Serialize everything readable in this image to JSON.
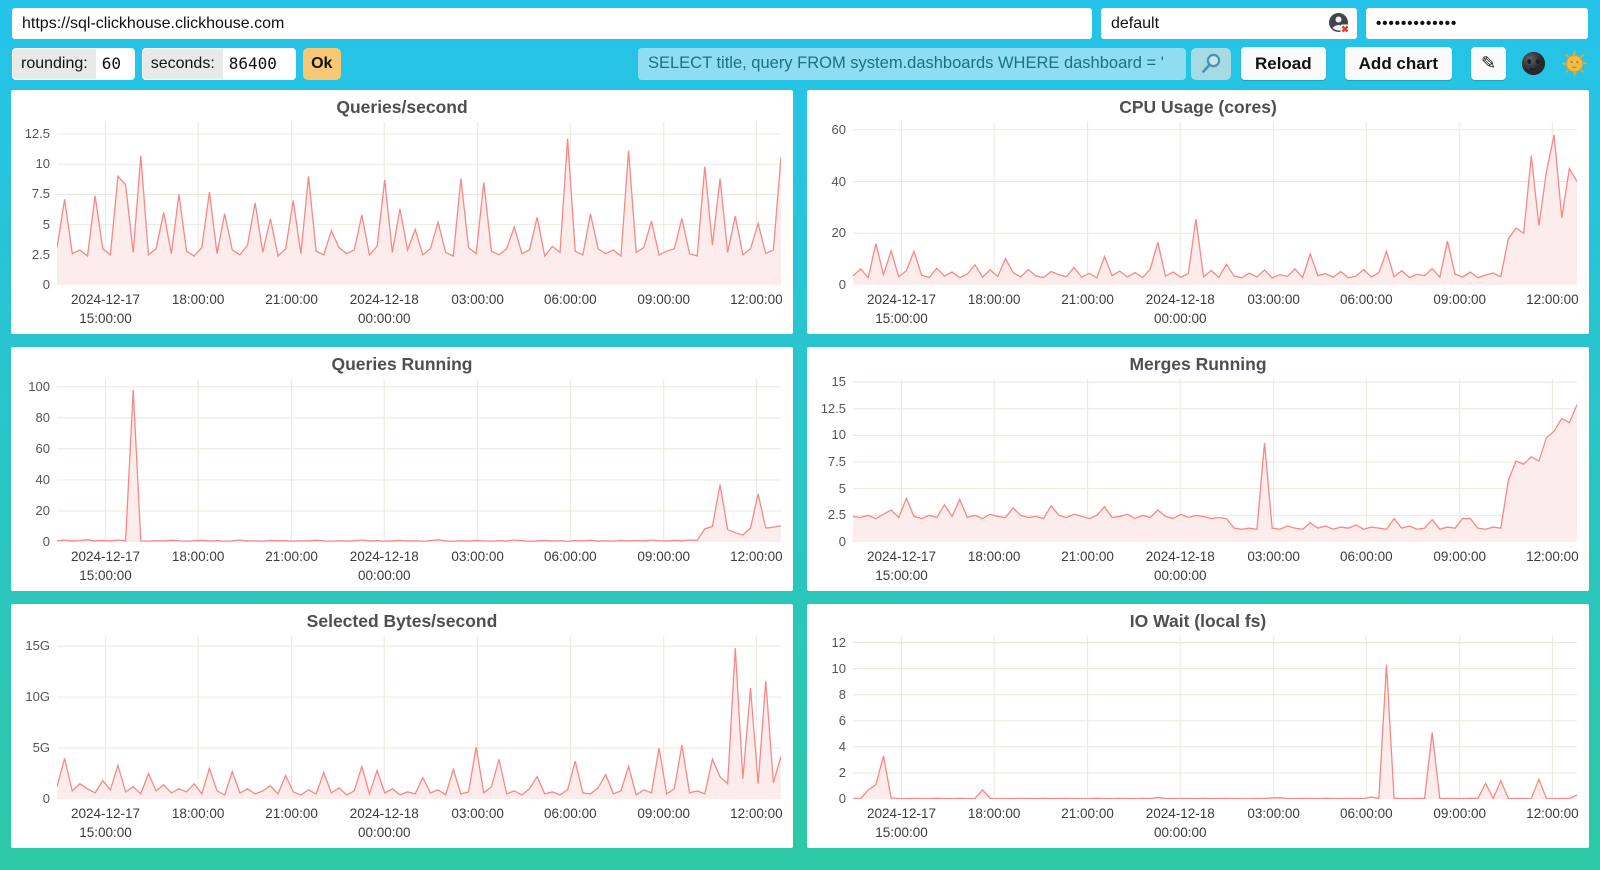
{
  "header": {
    "url": "https://sql-clickhouse.clickhouse.com",
    "user": "default",
    "password_masked": "•••••••••••••",
    "rounding_label": "rounding:",
    "rounding_value": "60",
    "seconds_label": "seconds:",
    "seconds_value": "86400",
    "ok_label": "Ok",
    "query_value": "SELECT title, query FROM system.dashboards WHERE dashboard = '",
    "reload_label": "Reload",
    "add_chart_label": "Add chart",
    "edit_icon": "✎"
  },
  "colors": {
    "background_top": "#25c3eb",
    "background_bottom": "#2dc8a5",
    "line": "#f88888",
    "fill": "#fdecec",
    "grid": "#eceadf",
    "ok_button": "#f8c875",
    "query_input_bg": "#90ddf1",
    "query_text": "#17718c",
    "title_text": "#4f4f4f"
  },
  "chart_data": {
    "type": "area",
    "x_axis": {
      "tick_positions": [
        0.067,
        0.195,
        0.324,
        0.452,
        0.581,
        0.709,
        0.838,
        0.966
      ],
      "tick_labels": [
        [
          "2024-12-17",
          "15:00:00"
        ],
        [
          "18:00:00",
          ""
        ],
        [
          "21:00:00",
          ""
        ],
        [
          "2024-12-18",
          "00:00:00"
        ],
        [
          "03:00:00",
          ""
        ],
        [
          "06:00:00",
          ""
        ],
        [
          "09:00:00",
          ""
        ],
        [
          "12:00:00",
          ""
        ]
      ]
    },
    "charts": [
      {
        "title": "Queries/second",
        "ymax": 13.5,
        "y_ticks": [
          {
            "v": 0,
            "label": "0"
          },
          {
            "v": 2.5,
            "label": "2.5"
          },
          {
            "v": 5,
            "label": "5"
          },
          {
            "v": 7.5,
            "label": "7.5"
          },
          {
            "v": 10,
            "label": "10"
          },
          {
            "v": 12.5,
            "label": "12.5"
          }
        ],
        "values": [
          3.1,
          7.1,
          2.6,
          2.9,
          2.4,
          7.4,
          3.0,
          2.5,
          9.0,
          8.3,
          2.7,
          10.7,
          2.5,
          3.0,
          6.0,
          2.6,
          7.5,
          2.8,
          2.4,
          3.1,
          7.7,
          2.6,
          5.9,
          2.9,
          2.5,
          3.3,
          6.8,
          2.7,
          5.5,
          2.4,
          3.0,
          7.0,
          2.6,
          9.0,
          2.8,
          2.5,
          4.5,
          3.1,
          2.6,
          2.9,
          5.8,
          2.5,
          3.2,
          8.7,
          2.7,
          6.3,
          2.9,
          4.6,
          2.5,
          3.0,
          5.2,
          2.7,
          2.4,
          8.8,
          3.1,
          2.6,
          8.5,
          2.8,
          2.5,
          3.0,
          4.8,
          2.6,
          2.9,
          5.6,
          2.4,
          3.2,
          2.7,
          12.1,
          2.8,
          2.5,
          5.9,
          3.0,
          2.6,
          2.9,
          2.4,
          11.1,
          2.7,
          3.1,
          5.3,
          2.5,
          2.8,
          3.0,
          5.5,
          2.6,
          2.4,
          9.8,
          3.3,
          8.8,
          2.7,
          5.7,
          2.5,
          3.0,
          5.1,
          2.6,
          2.9,
          10.6
        ]
      },
      {
        "title": "CPU Usage (cores)",
        "ymax": 63,
        "y_ticks": [
          {
            "v": 0,
            "label": "0"
          },
          {
            "v": 20,
            "label": "20"
          },
          {
            "v": 40,
            "label": "40"
          },
          {
            "v": 60,
            "label": "60"
          }
        ],
        "values": [
          3.5,
          6.2,
          2.8,
          16.0,
          4.0,
          13.2,
          3.2,
          5.5,
          13.0,
          3.8,
          2.9,
          6.5,
          3.4,
          5.0,
          2.8,
          4.2,
          7.8,
          3.0,
          5.9,
          3.3,
          10.2,
          4.8,
          3.1,
          6.0,
          3.5,
          2.9,
          5.2,
          4.0,
          3.2,
          6.8,
          3.0,
          4.5,
          2.8,
          11.0,
          3.6,
          5.4,
          3.1,
          4.8,
          2.9,
          6.1,
          16.5,
          3.4,
          5.0,
          3.0,
          4.4,
          25.5,
          3.2,
          5.6,
          2.9,
          8.0,
          3.5,
          2.8,
          4.6,
          3.1,
          5.8,
          2.7,
          4.0,
          3.3,
          6.2,
          2.9,
          12.0,
          3.6,
          4.4,
          3.0,
          5.2,
          2.8,
          3.4,
          6.0,
          3.1,
          4.7,
          13.0,
          3.2,
          5.5,
          2.9,
          4.1,
          3.6,
          6.3,
          3.0,
          17.0,
          4.2,
          3.1,
          5.0,
          2.8,
          3.8,
          4.6,
          3.2,
          18.0,
          22.0,
          20.0,
          50.0,
          23.0,
          44.0,
          58.0,
          26.0,
          45.0,
          40.0
        ]
      },
      {
        "title": "Queries Running",
        "ymax": 105,
        "y_ticks": [
          {
            "v": 0,
            "label": "0"
          },
          {
            "v": 20,
            "label": "20"
          },
          {
            "v": 40,
            "label": "40"
          },
          {
            "v": 60,
            "label": "60"
          },
          {
            "v": 80,
            "label": "80"
          },
          {
            "v": 100,
            "label": "100"
          }
        ],
        "values": [
          0.8,
          1.2,
          0.6,
          0.9,
          1.5,
          0.7,
          1.0,
          0.6,
          1.3,
          0.8,
          98.0,
          0.7,
          0.5,
          0.9,
          0.6,
          1.1,
          0.7,
          0.5,
          0.8,
          1.0,
          0.6,
          0.9,
          0.5,
          0.7,
          1.2,
          0.6,
          0.8,
          0.5,
          1.0,
          0.7,
          0.9,
          0.5,
          0.8,
          0.6,
          1.1,
          0.7,
          0.5,
          0.9,
          0.6,
          0.8,
          1.3,
          0.6,
          0.9,
          0.5,
          0.7,
          1.0,
          0.6,
          0.8,
          0.5,
          0.9,
          1.4,
          0.7,
          0.5,
          0.8,
          0.6,
          1.0,
          0.7,
          0.5,
          0.9,
          0.6,
          1.2,
          0.8,
          0.5,
          0.7,
          1.0,
          0.6,
          0.8,
          0.5,
          0.9,
          0.7,
          1.1,
          0.6,
          0.8,
          0.5,
          1.0,
          0.7,
          0.9,
          0.6,
          1.2,
          0.8,
          0.6,
          1.0,
          0.7,
          1.3,
          1.0,
          8.5,
          10.0,
          37.0,
          8.0,
          6.0,
          4.5,
          9.0,
          31.0,
          9.0,
          9.5,
          10.5
        ]
      },
      {
        "title": "Merges Running",
        "ymax": 15.3,
        "y_ticks": [
          {
            "v": 0,
            "label": "0"
          },
          {
            "v": 2.5,
            "label": "2.5"
          },
          {
            "v": 5,
            "label": "5"
          },
          {
            "v": 7.5,
            "label": "7.5"
          },
          {
            "v": 10,
            "label": "10"
          },
          {
            "v": 12.5,
            "label": "12.5"
          },
          {
            "v": 15,
            "label": "15"
          }
        ],
        "values": [
          2.4,
          2.3,
          2.5,
          2.2,
          2.6,
          3.0,
          2.3,
          4.1,
          2.4,
          2.2,
          2.5,
          2.3,
          3.5,
          2.4,
          4.0,
          2.3,
          2.5,
          2.2,
          2.6,
          2.4,
          2.3,
          3.2,
          2.5,
          2.3,
          2.4,
          2.2,
          3.4,
          2.5,
          2.3,
          2.6,
          2.4,
          2.2,
          2.5,
          3.3,
          2.3,
          2.4,
          2.6,
          2.2,
          2.5,
          2.3,
          3.0,
          2.4,
          2.2,
          2.6,
          2.3,
          2.5,
          2.4,
          2.2,
          2.3,
          2.2,
          1.3,
          1.2,
          1.3,
          1.2,
          9.3,
          1.3,
          1.2,
          1.5,
          1.3,
          1.2,
          1.8,
          1.3,
          1.5,
          1.2,
          1.4,
          1.3,
          1.6,
          1.2,
          1.4,
          1.3,
          1.2,
          2.2,
          1.3,
          1.5,
          1.2,
          1.3,
          2.1,
          1.2,
          1.4,
          1.3,
          2.2,
          2.2,
          1.3,
          1.2,
          1.4,
          1.3,
          5.8,
          7.6,
          7.3,
          8.0,
          7.6,
          9.8,
          10.4,
          11.6,
          11.2,
          12.9
        ]
      },
      {
        "title": "Selected Bytes/second",
        "ymax": 16,
        "y_ticks": [
          {
            "v": 0,
            "label": "0"
          },
          {
            "v": 5,
            "label": "5G"
          },
          {
            "v": 10,
            "label": "10G"
          },
          {
            "v": 15,
            "label": "15G"
          }
        ],
        "values": [
          1.2,
          4.0,
          0.8,
          1.5,
          1.0,
          0.6,
          1.8,
          0.9,
          3.3,
          0.7,
          1.2,
          0.5,
          2.5,
          0.8,
          1.4,
          0.6,
          1.0,
          0.7,
          1.5,
          0.5,
          3.0,
          0.8,
          0.4,
          2.7,
          0.6,
          1.0,
          0.5,
          0.8,
          1.3,
          0.5,
          2.3,
          0.7,
          0.4,
          0.9,
          0.5,
          2.6,
          0.6,
          1.1,
          0.4,
          0.8,
          3.2,
          0.5,
          2.8,
          0.6,
          1.0,
          0.4,
          0.7,
          0.5,
          2.1,
          0.6,
          0.9,
          0.4,
          2.9,
          0.5,
          0.7,
          5.1,
          0.6,
          1.2,
          3.9,
          0.5,
          0.8,
          0.4,
          1.0,
          2.2,
          0.5,
          0.7,
          0.4,
          0.9,
          3.7,
          0.6,
          0.5,
          1.1,
          2.4,
          0.5,
          0.8,
          3.2,
          0.4,
          0.9,
          0.6,
          5.0,
          0.5,
          1.0,
          5.3,
          0.6,
          0.8,
          0.5,
          3.9,
          2.2,
          1.5,
          14.8,
          2.0,
          10.9,
          1.5,
          11.6,
          1.6,
          4.2
        ]
      },
      {
        "title": "IO Wait (local fs)",
        "ymax": 12.5,
        "y_ticks": [
          {
            "v": 0,
            "label": "0"
          },
          {
            "v": 2,
            "label": "2"
          },
          {
            "v": 4,
            "label": "4"
          },
          {
            "v": 6,
            "label": "6"
          },
          {
            "v": 8,
            "label": "8"
          },
          {
            "v": 10,
            "label": "10"
          },
          {
            "v": 12,
            "label": "12"
          }
        ],
        "values": [
          0.05,
          0.03,
          0.7,
          1.1,
          3.3,
          0.08,
          0.04,
          0.03,
          0.05,
          0.04,
          0.03,
          0.06,
          0.04,
          0.03,
          0.05,
          0.03,
          0.04,
          0.7,
          0.05,
          0.03,
          0.04,
          0.03,
          0.05,
          0.04,
          0.03,
          0.06,
          0.03,
          0.04,
          0.05,
          0.03,
          0.04,
          0.03,
          0.06,
          0.04,
          0.03,
          0.05,
          0.04,
          0.03,
          0.05,
          0.03,
          0.12,
          0.04,
          0.03,
          0.05,
          0.04,
          0.03,
          0.06,
          0.03,
          0.04,
          0.05,
          0.03,
          0.04,
          0.03,
          0.05,
          0.04,
          0.08,
          0.1,
          0.04,
          0.03,
          0.05,
          0.04,
          0.03,
          0.06,
          0.04,
          0.03,
          0.05,
          0.04,
          0.03,
          0.15,
          0.04,
          10.3,
          0.05,
          0.04,
          0.03,
          0.05,
          0.04,
          5.1,
          0.03,
          0.05,
          0.04,
          0.03,
          0.06,
          0.04,
          1.2,
          0.04,
          1.4,
          0.03,
          0.05,
          0.04,
          0.03,
          1.5,
          0.04,
          0.03,
          0.05,
          0.04,
          0.3
        ]
      }
    ]
  }
}
